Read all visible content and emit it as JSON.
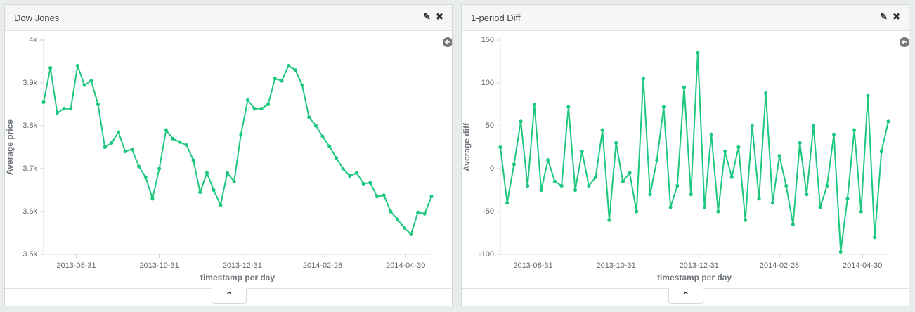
{
  "chart_data": [
    {
      "type": "line",
      "title": "Dow Jones",
      "xlabel": "timestamp per day",
      "ylabel": "Average price",
      "x": [
        "2013-08-07",
        "2013-08-12",
        "2013-08-17",
        "2013-08-22",
        "2013-08-27",
        "2013-09-01",
        "2013-09-06",
        "2013-09-11",
        "2013-09-16",
        "2013-09-21",
        "2013-09-26",
        "2013-10-01",
        "2013-10-06",
        "2013-10-11",
        "2013-10-16",
        "2013-10-21",
        "2013-10-26",
        "2013-10-31",
        "2013-11-05",
        "2013-11-10",
        "2013-11-15",
        "2013-11-20",
        "2013-11-25",
        "2013-11-30",
        "2013-12-05",
        "2013-12-10",
        "2013-12-15",
        "2013-12-20",
        "2013-12-25",
        "2013-12-30",
        "2014-01-04",
        "2014-01-09",
        "2014-01-14",
        "2014-01-19",
        "2014-01-24",
        "2014-01-29",
        "2014-02-03",
        "2014-02-08",
        "2014-02-13",
        "2014-02-18",
        "2014-02-23",
        "2014-02-28",
        "2014-03-05",
        "2014-03-10",
        "2014-03-15",
        "2014-03-20",
        "2014-03-25",
        "2014-03-30",
        "2014-04-04",
        "2014-04-09",
        "2014-04-14",
        "2014-04-19",
        "2014-04-24",
        "2014-04-29",
        "2014-05-04",
        "2014-05-09",
        "2014-05-14",
        "2014-05-19"
      ],
      "series": [
        {
          "name": "Average price",
          "color": "#1ec77f",
          "values": [
            3855,
            3935,
            3830,
            3840,
            3840,
            3940,
            3895,
            3905,
            3850,
            3750,
            3760,
            3785,
            3740,
            3745,
            3705,
            3680,
            3630,
            3700,
            3790,
            3770,
            3762,
            3755,
            3720,
            3645,
            3690,
            3650,
            3615,
            3690,
            3670,
            3780,
            3860,
            3840,
            3840,
            3850,
            3910,
            3905,
            3940,
            3930,
            3895,
            3820,
            3800,
            3775,
            3752,
            3725,
            3700,
            3683,
            3690,
            3665,
            3667,
            3635,
            3638,
            3600,
            3582,
            3562,
            3547,
            3598,
            3595,
            3635
          ]
        }
      ],
      "xlim": [
        "2013-08-07",
        "2014-05-19"
      ],
      "xticks": [
        "2013-08-31",
        "2013-10-31",
        "2013-12-31",
        "2014-02-28",
        "2014-04-30"
      ],
      "ylim": [
        3500,
        4000
      ],
      "yticks": [
        {
          "value": 3500,
          "label": "3.5k"
        },
        {
          "value": 3600,
          "label": "3.6k"
        },
        {
          "value": 3700,
          "label": "3.7k"
        },
        {
          "value": 3800,
          "label": "3.8k"
        },
        {
          "value": 3900,
          "label": "3.9k"
        },
        {
          "value": 4000,
          "label": "4k"
        }
      ]
    },
    {
      "type": "line",
      "title": "1-period Diff",
      "xlabel": "timestamp per day",
      "ylabel": "Average diff",
      "x": [
        "2013-08-07",
        "2013-08-12",
        "2013-08-17",
        "2013-08-22",
        "2013-08-27",
        "2013-09-01",
        "2013-09-06",
        "2013-09-11",
        "2013-09-16",
        "2013-09-21",
        "2013-09-26",
        "2013-10-01",
        "2013-10-06",
        "2013-10-11",
        "2013-10-16",
        "2013-10-21",
        "2013-10-26",
        "2013-10-31",
        "2013-11-05",
        "2013-11-10",
        "2013-11-15",
        "2013-11-20",
        "2013-11-25",
        "2013-11-30",
        "2013-12-05",
        "2013-12-10",
        "2013-12-15",
        "2013-12-20",
        "2013-12-25",
        "2013-12-30",
        "2014-01-04",
        "2014-01-09",
        "2014-01-14",
        "2014-01-19",
        "2014-01-24",
        "2014-01-29",
        "2014-02-03",
        "2014-02-08",
        "2014-02-13",
        "2014-02-18",
        "2014-02-23",
        "2014-02-28",
        "2014-03-05",
        "2014-03-10",
        "2014-03-15",
        "2014-03-20",
        "2014-03-25",
        "2014-03-30",
        "2014-04-04",
        "2014-04-09",
        "2014-04-14",
        "2014-04-19",
        "2014-04-24",
        "2014-04-29",
        "2014-05-04",
        "2014-05-09",
        "2014-05-14",
        "2014-05-19"
      ],
      "series": [
        {
          "name": "Average diff",
          "color": "#1ec77f",
          "values": [
            25,
            -40,
            5,
            55,
            -20,
            75,
            -25,
            10,
            -15,
            -20,
            72,
            -25,
            20,
            -20,
            -10,
            45,
            -60,
            30,
            -15,
            -5,
            -50,
            105,
            -30,
            10,
            72,
            -45,
            -20,
            95,
            -30,
            135,
            -45,
            40,
            -50,
            20,
            -10,
            25,
            -60,
            50,
            -35,
            88,
            -40,
            15,
            -20,
            -65,
            30,
            -30,
            50,
            -45,
            -20,
            40,
            -97,
            -35,
            45,
            -50,
            85,
            -80,
            20,
            55
          ]
        }
      ],
      "xlim": [
        "2013-08-07",
        "2014-05-19"
      ],
      "xticks": [
        "2013-08-31",
        "2013-10-31",
        "2013-12-31",
        "2014-02-28",
        "2014-04-30"
      ],
      "ylim": [
        -100,
        150
      ],
      "yticks": [
        -100,
        -50,
        0,
        50,
        100,
        150
      ]
    }
  ]
}
